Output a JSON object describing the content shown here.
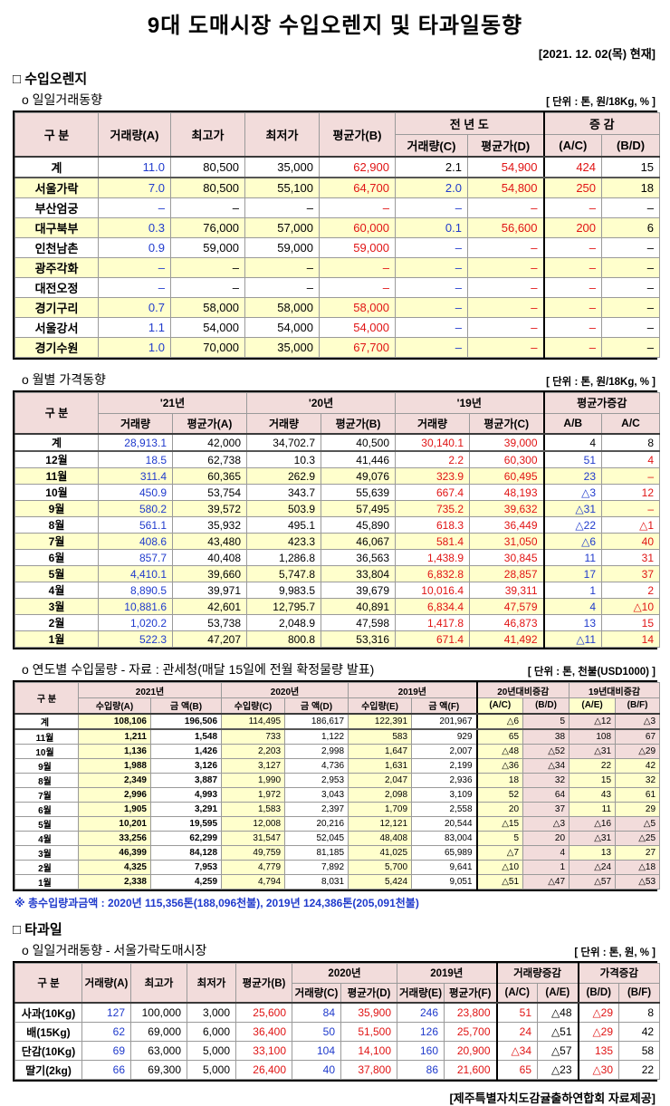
{
  "title": "9대 도매시장 수입오렌지 및 타과일동향",
  "date_label": "[2021. 12. 02(목) 현재]",
  "colors": {
    "increase_red": "#E01414",
    "quantity_blue": "#1F3ACC",
    "header_pink": "#F2DCDB",
    "band_yellow": "#FFFFCC",
    "note_blue": "#1F3ACC"
  },
  "sections": {
    "orange": {
      "heading": "□ 수입오렌지"
    },
    "fruit": {
      "heading": "□ 타과일"
    }
  },
  "tables": {
    "daily": {
      "subtitle": "o 일일거래동향",
      "unit": "[ 단위 : 톤, 원/18Kg, % ]",
      "widths": [
        92,
        80,
        82,
        82,
        84,
        80,
        84,
        64,
        64
      ],
      "header": [
        [
          {
            "t": "구    분",
            "rs": 2
          },
          {
            "t": "거래량(A)",
            "rs": 2
          },
          {
            "t": "최고가",
            "rs": 2
          },
          {
            "t": "최저가",
            "rs": 2
          },
          {
            "t": "평균가(B)",
            "rs": 2
          },
          {
            "t": "전 년 도",
            "cs": 2
          },
          {
            "t": "증  감",
            "cs": 2
          }
        ],
        [
          {
            "t": "거래량(C)"
          },
          {
            "t": "평균가(D)"
          },
          {
            "t": "(A/C)"
          },
          {
            "t": "(B/D)"
          }
        ]
      ],
      "col_color": [
        "k",
        "b",
        "k",
        "k",
        "r",
        "b",
        "r",
        "r",
        "k"
      ],
      "row_bg": [
        "w",
        "y",
        "w",
        "y",
        "w",
        "y",
        "w",
        "y",
        "w",
        "y"
      ],
      "strong_rows": [
        0
      ],
      "thick": [
        7
      ],
      "rows": [
        [
          "계",
          "11.0",
          "80,500",
          "35,000",
          "62,900",
          {
            "v": "2.1",
            "c": "k"
          },
          "54,900",
          "424",
          "15"
        ],
        [
          "서울가락",
          "7.0",
          "80,500",
          "55,100",
          "64,700",
          "2.0",
          "54,800",
          "250",
          "18"
        ],
        [
          "부산엄궁",
          "–",
          "–",
          "–",
          "–",
          "–",
          "–",
          "–",
          "–"
        ],
        [
          "대구북부",
          "0.3",
          "76,000",
          "57,000",
          "60,000",
          "0.1",
          "56,600",
          "200",
          "6"
        ],
        [
          "인천남촌",
          "0.9",
          "59,000",
          "59,000",
          "59,000",
          "–",
          "–",
          "–",
          "–"
        ],
        [
          "광주각화",
          "–",
          "–",
          "–",
          "–",
          "–",
          "–",
          "–",
          "–"
        ],
        [
          "대전오정",
          "–",
          "–",
          "–",
          "–",
          "–",
          "–",
          "–",
          "–"
        ],
        [
          "경기구리",
          "0.7",
          "58,000",
          "58,000",
          "58,000",
          "–",
          "–",
          "–",
          "–"
        ],
        [
          "서울강서",
          "1.1",
          "54,000",
          "54,000",
          "54,000",
          "–",
          "–",
          "–",
          "–"
        ],
        [
          "경기수원",
          "1.0",
          "70,000",
          "35,000",
          "67,700",
          "–",
          "–",
          "–",
          "–"
        ]
      ]
    },
    "monthly": {
      "subtitle": "o 월별 가격동향",
      "unit": "[ 단위 : 톤, 원/18Kg, % ]",
      "widths": [
        92,
        82,
        82,
        82,
        82,
        82,
        82,
        64,
        64
      ],
      "header": [
        [
          {
            "t": "구      분",
            "rs": 2
          },
          {
            "t": "'21년",
            "cs": 2
          },
          {
            "t": "'20년",
            "cs": 2
          },
          {
            "t": "'19년",
            "cs": 2
          },
          {
            "t": "평균가증감",
            "cs": 2
          }
        ],
        [
          {
            "t": "거래량"
          },
          {
            "t": "평균가(A)"
          },
          {
            "t": "거래량"
          },
          {
            "t": "평균가(B)"
          },
          {
            "t": "거래량"
          },
          {
            "t": "평균가(C)"
          },
          {
            "t": "A/B"
          },
          {
            "t": "A/C"
          }
        ]
      ],
      "col_color": [
        "k",
        "b",
        "k",
        "k",
        "k",
        "r",
        "r",
        "b",
        "r"
      ],
      "row_bg": [
        "w",
        "w",
        "y",
        "w",
        "y",
        "w",
        "y",
        "w",
        "y",
        "w",
        "y",
        "w",
        "y"
      ],
      "strong_rows": [
        0
      ],
      "thick": [
        7
      ],
      "dotted": [
        2,
        4,
        6,
        8
      ],
      "rows": [
        [
          "계",
          "28,913.1",
          "42,000",
          "34,702.7",
          "40,500",
          "30,140.1",
          "39,000",
          {
            "v": "4",
            "c": "k"
          },
          {
            "v": "8",
            "c": "k"
          }
        ],
        [
          "12월",
          "18.5",
          "62,738",
          "10.3",
          "41,446",
          "2.2",
          "60,300",
          "51",
          "4"
        ],
        [
          "11월",
          "311.4",
          "60,365",
          "262.9",
          "49,076",
          "323.9",
          "60,495",
          "23",
          "–"
        ],
        [
          "10월",
          "450.9",
          "53,754",
          "343.7",
          "55,639",
          "667.4",
          "48,193",
          "△3",
          "12"
        ],
        [
          "9월",
          "580.2",
          "39,572",
          "503.9",
          "57,495",
          "735.2",
          "39,632",
          "△31",
          "–"
        ],
        [
          "8월",
          "561.1",
          "35,932",
          "495.1",
          "45,890",
          "618.3",
          "36,449",
          "△22",
          "△1"
        ],
        [
          "7월",
          "408.6",
          "43,480",
          "423.3",
          "46,067",
          "581.4",
          "31,050",
          "△6",
          "40"
        ],
        [
          "6월",
          "857.7",
          "40,408",
          "1,286.8",
          "36,563",
          "1,438.9",
          "30,845",
          "11",
          "31"
        ],
        [
          "5월",
          "4,410.1",
          "39,660",
          "5,747.8",
          "33,804",
          "6,832.8",
          "28,857",
          "17",
          "37"
        ],
        [
          "4월",
          "8,890.5",
          "39,971",
          "9,983.5",
          "39,679",
          "10,016.4",
          "39,311",
          "1",
          "2"
        ],
        [
          "3월",
          "10,881.6",
          "42,601",
          "12,795.7",
          "40,891",
          "6,834.4",
          "47,579",
          "4",
          "△10"
        ],
        [
          "2월",
          "1,020.2",
          "53,738",
          "2,048.9",
          "47,598",
          "1,417.8",
          "46,873",
          "13",
          "15"
        ],
        [
          "1월",
          "522.3",
          "47,207",
          "800.8",
          "53,316",
          "671.4",
          "41,492",
          "△11",
          "14"
        ]
      ]
    },
    "yearly": {
      "subtitle": "o 연도별 수입물량 - 자료 : 관세청(매달 15일에 전월 확정물량 발표)",
      "unit": "[ 단위 : 톤, 천불(USD1000) ]",
      "note": "※ 총수입량과금액 : 2020년 115,356톤(188,096천불),  2019년 124,386톤(205,091천불)",
      "widths": [
        70,
        80,
        78,
        70,
        70,
        70,
        72,
        51,
        51,
        51,
        49
      ],
      "header": [
        [
          {
            "t": "구 분",
            "rs": 2
          },
          {
            "t": "2021년",
            "cs": 2
          },
          {
            "t": "2020년",
            "cs": 2
          },
          {
            "t": "2019년",
            "cs": 2
          },
          {
            "t": "20년대비증감",
            "cs": 2
          },
          {
            "t": "19년대비증감",
            "cs": 2
          }
        ],
        [
          {
            "t": "수입량(A)"
          },
          {
            "t": "금  액(B)"
          },
          {
            "t": "수입량(C)"
          },
          {
            "t": "금  액(D)"
          },
          {
            "t": "수입량(E)"
          },
          {
            "t": "금  액(F)"
          },
          {
            "t": "(A/C)",
            "bg": "y"
          },
          {
            "t": "(B/D)"
          },
          {
            "t": "(A/E)",
            "bg": "y"
          },
          {
            "t": "(B/F)"
          }
        ]
      ],
      "col_bg": [
        "",
        "y",
        "",
        "y",
        "",
        "y",
        "",
        "y",
        "p",
        "p",
        "p"
      ],
      "bold_cols": [
        0,
        1,
        2
      ],
      "strong_rows": [
        0
      ],
      "thick": [
        7
      ],
      "rows": [
        [
          "계",
          "108,106",
          "196,506",
          "114,495",
          "186,617",
          "122,391",
          "201,967",
          "△6",
          "5",
          "△12",
          "△3"
        ],
        [
          "11월",
          "1,211",
          "1,548",
          "733",
          "1,122",
          "583",
          "929",
          "65",
          "38",
          "108",
          "67"
        ],
        [
          "10월",
          "1,136",
          "1,426",
          "2,203",
          "2,998",
          "1,647",
          "2,007",
          "△48",
          "△52",
          "△31",
          "△29"
        ],
        [
          "9월",
          "1,988",
          "3,126",
          "3,127",
          "4,736",
          "1,631",
          "2,199",
          "△36",
          "△34",
          {
            "v": "22",
            "bg": "y"
          },
          {
            "v": "42",
            "bg": "y"
          }
        ],
        [
          "8월",
          "2,349",
          "3,887",
          "1,990",
          "2,953",
          "2,047",
          "2,936",
          "18",
          "32",
          {
            "v": "15",
            "bg": "y"
          },
          {
            "v": "32",
            "bg": "y"
          }
        ],
        [
          "7월",
          "2,996",
          "4,993",
          "1,972",
          "3,043",
          "2,098",
          "3,109",
          "52",
          "64",
          {
            "v": "43",
            "bg": "y"
          },
          {
            "v": "61",
            "bg": "y"
          }
        ],
        [
          "6월",
          "1,905",
          "3,291",
          "1,583",
          "2,397",
          "1,709",
          "2,558",
          "20",
          "37",
          {
            "v": "11",
            "bg": "y"
          },
          {
            "v": "29",
            "bg": "y"
          }
        ],
        [
          "5월",
          "10,201",
          "19,595",
          "12,008",
          "20,216",
          "12,121",
          "20,544",
          "△15",
          "△3",
          "△16",
          "△5"
        ],
        [
          "4월",
          "33,256",
          "62,299",
          "31,547",
          "52,045",
          "48,408",
          "83,004",
          "5",
          "20",
          "△31",
          "△25"
        ],
        [
          "3월",
          "46,399",
          "84,128",
          "49,759",
          "81,185",
          "41,025",
          "65,989",
          "△7",
          "4",
          {
            "v": "13",
            "bg": "y"
          },
          {
            "v": "27",
            "bg": "y"
          }
        ],
        [
          "2월",
          "4,325",
          "7,953",
          "4,779",
          "7,892",
          "5,700",
          "9,641",
          "△10",
          "1",
          "△24",
          "△18"
        ],
        [
          "1월",
          "2,338",
          "4,259",
          "4,794",
          "8,031",
          "5,424",
          "9,051",
          "△51",
          "△47",
          "△57",
          "△53"
        ]
      ]
    },
    "fruit_daily": {
      "subtitle": "o 일일거래동향 - 서울가락도매시장",
      "unit": "[ 단위 : 톤, 원, % ]",
      "footer": "[제주특별자치도감귤출하연합회 자료제공]",
      "widths": [
        74,
        54,
        62,
        54,
        62,
        54,
        62,
        52,
        58,
        45,
        45,
        45,
        45
      ],
      "header": [
        [
          {
            "t": "구  분",
            "rs": 2
          },
          {
            "t": "거래량(A)",
            "rs": 2
          },
          {
            "t": "최고가",
            "rs": 2
          },
          {
            "t": "최저가",
            "rs": 2
          },
          {
            "t": "평균가(B)",
            "rs": 2
          },
          {
            "t": "2020년",
            "cs": 2
          },
          {
            "t": "2019년",
            "cs": 2
          },
          {
            "t": "거래량증감",
            "cs": 2
          },
          {
            "t": "가격증감",
            "cs": 2
          }
        ],
        [
          {
            "t": "거래량(C)"
          },
          {
            "t": "평균가(D)"
          },
          {
            "t": "거래량(E)"
          },
          {
            "t": "평균가(F)"
          },
          {
            "t": "(A/C)"
          },
          {
            "t": "(A/E)"
          },
          {
            "t": "(B/D)"
          },
          {
            "t": "(B/F)"
          }
        ]
      ],
      "col_color": [
        "k",
        "b",
        "k",
        "k",
        "r",
        "b",
        "r",
        "b",
        "r",
        "r",
        "k",
        "r",
        "k"
      ],
      "row_bg": [
        "w",
        "w",
        "w",
        "w"
      ],
      "thick": [
        9,
        11
      ],
      "rows": [
        [
          "사과(10Kg)",
          "127",
          "100,000",
          "3,000",
          "25,600",
          "84",
          "35,900",
          "246",
          "23,800",
          "51",
          "△48",
          "△29",
          "8"
        ],
        [
          "배(15Kg)",
          "62",
          "69,000",
          "6,000",
          "36,400",
          "50",
          "51,500",
          "126",
          "25,700",
          "24",
          "△51",
          "△29",
          "42"
        ],
        [
          "단감(10Kg)",
          "69",
          "63,000",
          "5,000",
          "33,100",
          "104",
          "14,100",
          "160",
          "20,900",
          "△34",
          "△57",
          "135",
          "58"
        ],
        [
          "딸기(2kg)",
          "66",
          "69,300",
          "5,000",
          "26,400",
          "40",
          "37,800",
          "86",
          "21,600",
          "65",
          "△23",
          "△30",
          "22"
        ]
      ]
    }
  }
}
